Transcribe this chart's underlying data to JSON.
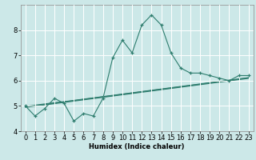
{
  "x": [
    0,
    1,
    2,
    3,
    4,
    5,
    6,
    7,
    8,
    9,
    10,
    11,
    12,
    13,
    14,
    15,
    16,
    17,
    18,
    19,
    20,
    21,
    22,
    23
  ],
  "main_line": [
    5.0,
    4.6,
    4.9,
    5.3,
    5.1,
    4.4,
    4.7,
    4.6,
    5.3,
    6.9,
    7.6,
    7.1,
    8.2,
    8.6,
    8.2,
    7.1,
    6.5,
    6.3,
    6.3,
    6.2,
    6.1,
    6.0,
    6.2,
    6.2
  ],
  "smooth_line1": [
    4.98,
    5.03,
    5.08,
    5.13,
    5.17,
    5.22,
    5.27,
    5.32,
    5.37,
    5.42,
    5.47,
    5.52,
    5.57,
    5.62,
    5.67,
    5.72,
    5.77,
    5.82,
    5.87,
    5.92,
    5.97,
    6.02,
    6.07,
    6.12
  ],
  "smooth_line2": [
    4.96,
    5.01,
    5.06,
    5.11,
    5.16,
    5.21,
    5.26,
    5.31,
    5.36,
    5.41,
    5.46,
    5.51,
    5.56,
    5.61,
    5.66,
    5.71,
    5.76,
    5.81,
    5.86,
    5.91,
    5.96,
    6.01,
    6.06,
    6.11
  ],
  "smooth_line3": [
    4.94,
    4.99,
    5.04,
    5.09,
    5.14,
    5.19,
    5.24,
    5.29,
    5.34,
    5.39,
    5.44,
    5.49,
    5.54,
    5.59,
    5.64,
    5.69,
    5.74,
    5.79,
    5.84,
    5.89,
    5.94,
    5.99,
    6.04,
    6.09
  ],
  "line_color": "#2e7d6e",
  "bg_color": "#cce8e8",
  "grid_color": "#ffffff",
  "xlabel": "Humidex (Indice chaleur)",
  "ylim": [
    4.0,
    9.0
  ],
  "xlim_left": -0.5,
  "xlim_right": 23.5,
  "yticks": [
    4,
    5,
    6,
    7,
    8
  ],
  "xticks": [
    0,
    1,
    2,
    3,
    4,
    5,
    6,
    7,
    8,
    9,
    10,
    11,
    12,
    13,
    14,
    15,
    16,
    17,
    18,
    19,
    20,
    21,
    22,
    23
  ],
  "font_size": 6.0
}
